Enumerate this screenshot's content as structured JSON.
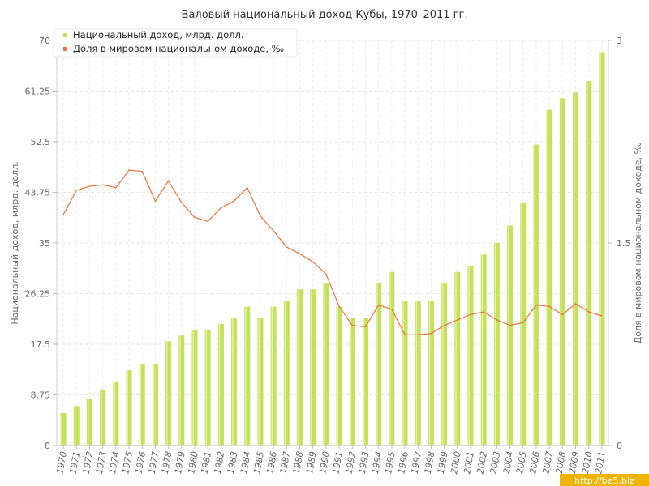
{
  "chart_data": {
    "type": "bar",
    "title": "Валовый национальный доход Кубы, 1970–2011 гг.",
    "ylabel_left": "Национальный доход, млрд. долл.",
    "ylabel_right": "Доля в мировом национальном доходе, ‰",
    "ylim_left": [
      0,
      70
    ],
    "ylim_right": [
      0,
      3
    ],
    "yticks_left": [
      "0",
      "8.75",
      "17.5",
      "26.25",
      "35",
      "43.75",
      "52.5",
      "61.25",
      "70"
    ],
    "yticks_right": [
      "0",
      "1.5",
      "3"
    ],
    "grid": true,
    "legend_position": "top-left",
    "colors": {
      "bar": "#c5e15a",
      "line": "#e8743b",
      "grid": "#e6e6e6"
    },
    "categories": [
      "1970",
      "1971",
      "1972",
      "1973",
      "1974",
      "1975",
      "1976",
      "1977",
      "1978",
      "1979",
      "1980",
      "1981",
      "1982",
      "1983",
      "1984",
      "1985",
      "1986",
      "1987",
      "1988",
      "1989",
      "1990",
      "1991",
      "1992",
      "1993",
      "1994",
      "1995",
      "1996",
      "1997",
      "1998",
      "1999",
      "2000",
      "2001",
      "2002",
      "2003",
      "2004",
      "2005",
      "2006",
      "2007",
      "2008",
      "2009",
      "2010",
      "2011"
    ],
    "series": [
      {
        "name": "Национальный доход, млрд. долл.",
        "type": "bar",
        "axis": "left",
        "values": [
          5.6,
          6.8,
          8.0,
          9.7,
          11.0,
          13.0,
          14.0,
          14.0,
          18.0,
          19.0,
          20.0,
          20.0,
          21.0,
          22.0,
          24.0,
          22.0,
          24.0,
          25.0,
          27.0,
          27.0,
          28.0,
          24.0,
          22.0,
          22.0,
          28.0,
          30.0,
          25.0,
          25.0,
          25.0,
          28.0,
          30.0,
          31.0,
          33.0,
          35.0,
          38.0,
          42.0,
          52.0,
          58.0,
          60.0,
          61.0,
          63.0,
          68.0
        ]
      },
      {
        "name": "Доля в мировом национальном доходе, ‰",
        "type": "line",
        "axis": "right",
        "values": [
          1.71,
          1.89,
          1.92,
          1.93,
          1.91,
          2.04,
          2.03,
          1.81,
          1.96,
          1.8,
          1.69,
          1.66,
          1.76,
          1.81,
          1.91,
          1.7,
          1.59,
          1.47,
          1.42,
          1.36,
          1.27,
          1.03,
          0.89,
          0.88,
          1.04,
          1.01,
          0.82,
          0.82,
          0.83,
          0.89,
          0.93,
          0.97,
          0.99,
          0.93,
          0.89,
          0.91,
          1.04,
          1.03,
          0.97,
          1.05,
          0.99,
          0.96
        ]
      }
    ]
  },
  "watermark": "http://be5.biz"
}
